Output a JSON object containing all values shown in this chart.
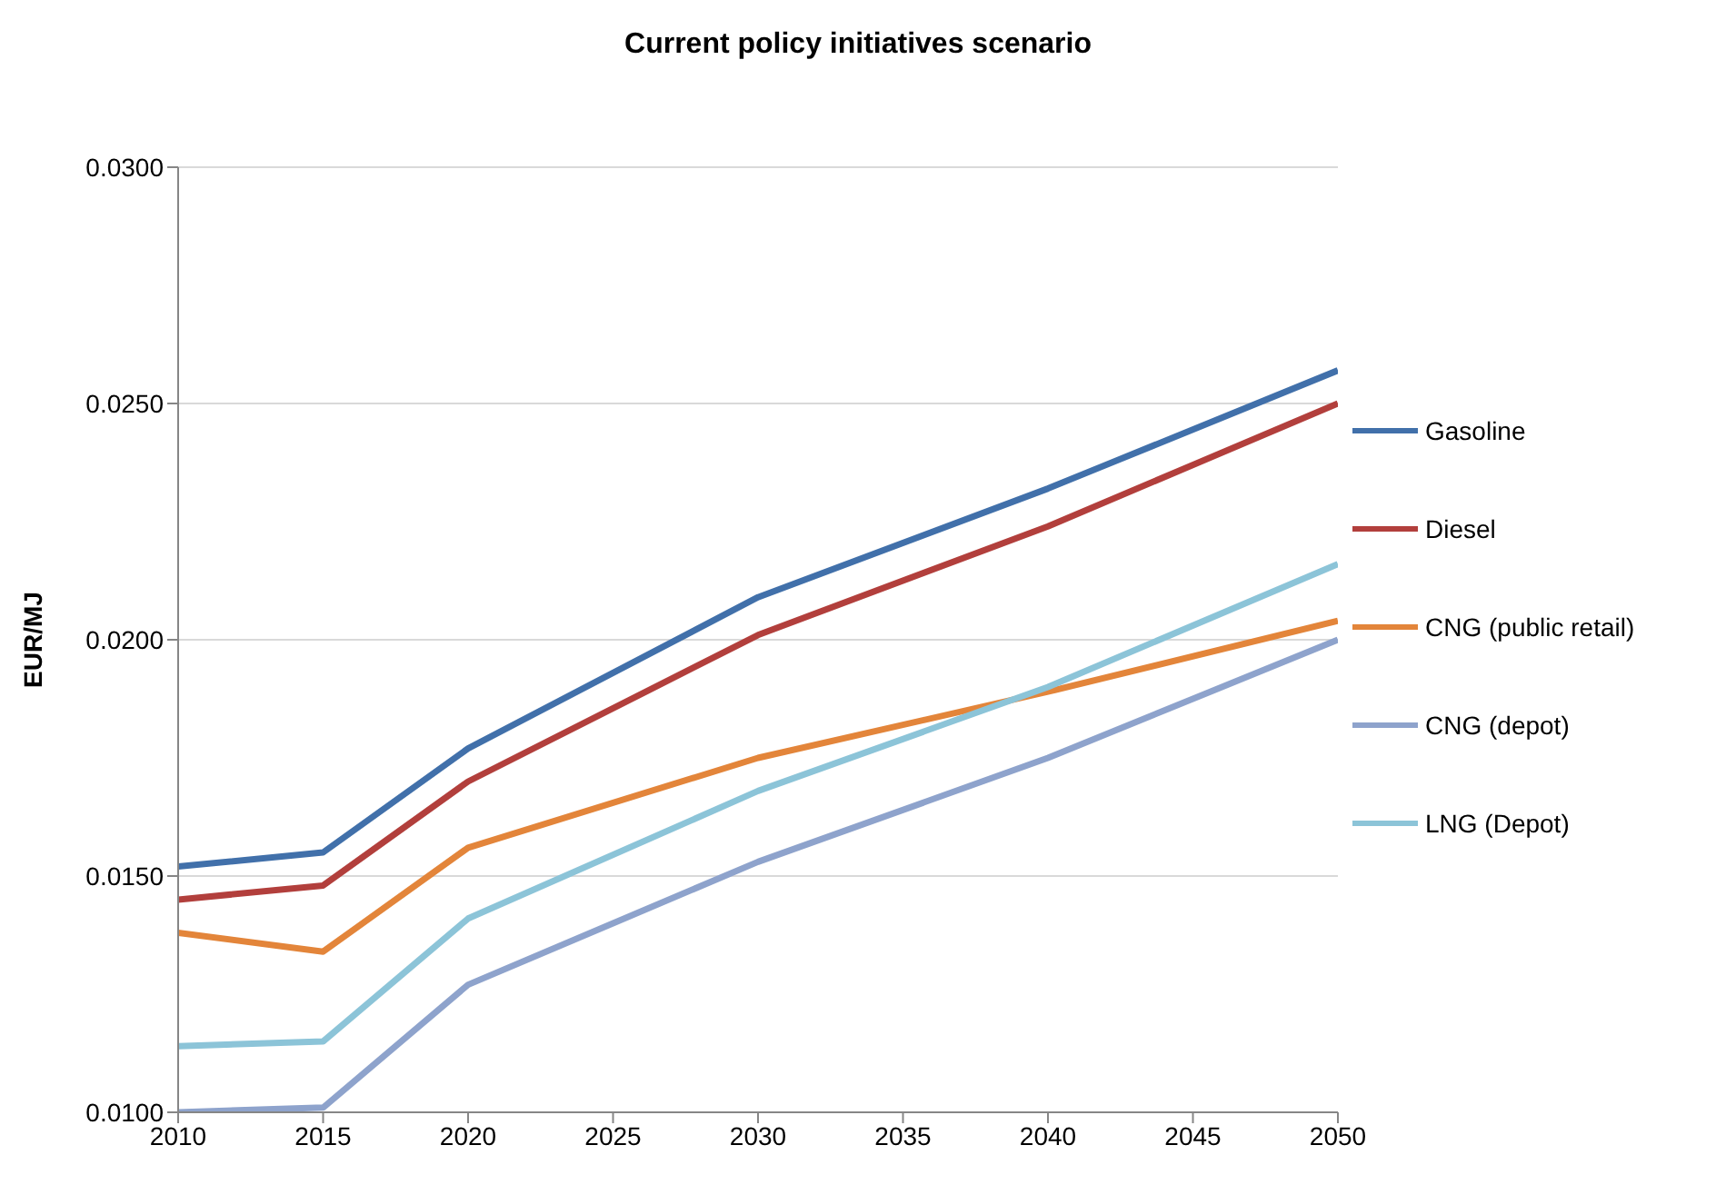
{
  "chart_data": {
    "type": "line",
    "title": "Current policy initiatives scenario",
    "ylabel": "EUR/MJ",
    "x": [
      2010,
      2015,
      2020,
      2030,
      2040,
      2050
    ],
    "xlim": [
      2010,
      2050
    ],
    "xticks": [
      2010,
      2015,
      2020,
      2025,
      2030,
      2035,
      2040,
      2045,
      2050
    ],
    "ylim": [
      0.01,
      0.03
    ],
    "yticks": [
      {
        "value": 0.01,
        "label": "0.0100"
      },
      {
        "value": 0.015,
        "label": "0.0150"
      },
      {
        "value": 0.02,
        "label": "0.0200"
      },
      {
        "value": 0.025,
        "label": "0.0250"
      },
      {
        "value": 0.03,
        "label": "0.0300"
      }
    ],
    "grid": "y",
    "legend": "right",
    "marker": "none",
    "line_style": "solid",
    "series": [
      {
        "name": "Gasoline",
        "color": "#4170aa",
        "values": [
          0.0152,
          0.0155,
          0.0177,
          0.0209,
          0.0232,
          0.0257
        ]
      },
      {
        "name": "Diesel",
        "color": "#b23f3c",
        "values": [
          0.0145,
          0.0148,
          0.017,
          0.0201,
          0.0224,
          0.025
        ]
      },
      {
        "name": "CNG (public retail)",
        "color": "#e3853a",
        "values": [
          0.0138,
          0.0134,
          0.0156,
          0.0175,
          0.0189,
          0.0204
        ]
      },
      {
        "name": "CNG (depot)",
        "color": "#8ea3cc",
        "values": [
          0.01,
          0.0101,
          0.0127,
          0.0153,
          0.0175,
          0.02
        ]
      },
      {
        "name": "LNG (Depot)",
        "color": "#8cc4d8",
        "values": [
          0.0114,
          0.0115,
          0.0141,
          0.0168,
          0.019,
          0.0216
        ]
      }
    ]
  }
}
